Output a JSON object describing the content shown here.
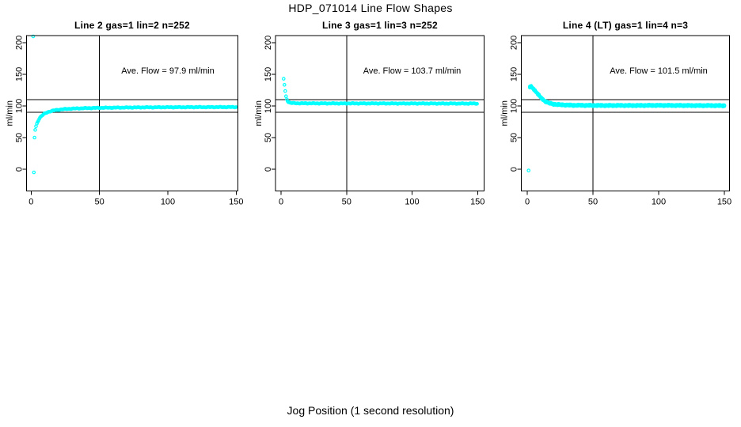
{
  "figure": {
    "title": "HDP_071014  Line Flow Shapes",
    "xlabel": "Jog Position (1 second resolution)"
  },
  "colors": {
    "points": "#00ffff",
    "axis": "#000000",
    "background": "#ffffff"
  },
  "chart_data": [
    {
      "type": "scatter",
      "title": "Line 2 gas=1 lin=2 n=252",
      "annotation": "Ave. Flow =  97.9  ml/min",
      "ave_flow_ml_min": 97.9,
      "n": 252,
      "ylabel": "ml/min",
      "xticks": [
        0,
        50,
        100,
        150
      ],
      "yticks": [
        0,
        50,
        100,
        150,
        200
      ],
      "xlim": [
        -3,
        153
      ],
      "ylim": [
        -34,
        212
      ],
      "ref_lines_horizontal": [
        90,
        110
      ],
      "ref_line_vertical": 50,
      "point_step": 0.6,
      "band_spread": 0,
      "outliers": [
        [
          1.5,
          210
        ],
        [
          2,
          -5
        ],
        [
          2.5,
          50
        ]
      ],
      "curve": [
        [
          3,
          62
        ],
        [
          3.4,
          66
        ],
        [
          3.8,
          69
        ],
        [
          4.2,
          72
        ],
        [
          4.6,
          74
        ],
        [
          5,
          76
        ],
        [
          5.5,
          78
        ],
        [
          6,
          80
        ],
        [
          6.5,
          81.5
        ],
        [
          7,
          83
        ],
        [
          8,
          85
        ],
        [
          9,
          86.5
        ],
        [
          10,
          88
        ],
        [
          11,
          89
        ],
        [
          12,
          90
        ],
        [
          13,
          90.8
        ],
        [
          14,
          91.5
        ],
        [
          15,
          92
        ],
        [
          16,
          92.5
        ],
        [
          17,
          93
        ],
        [
          18,
          93.4
        ],
        [
          19,
          93.7
        ],
        [
          20,
          94
        ],
        [
          22,
          94.5
        ],
        [
          24,
          94.9
        ],
        [
          26,
          95.2
        ],
        [
          28,
          95.5
        ],
        [
          30,
          95.7
        ],
        [
          33,
          96
        ],
        [
          36,
          96.2
        ],
        [
          40,
          96.5
        ],
        [
          44,
          96.7
        ],
        [
          48,
          96.9
        ],
        [
          52,
          97
        ],
        [
          56,
          97.2
        ],
        [
          60,
          97.3
        ],
        [
          65,
          97.4
        ],
        [
          70,
          97.5
        ],
        [
          75,
          97.6
        ],
        [
          80,
          97.7
        ],
        [
          85,
          97.8
        ],
        [
          90,
          97.8
        ],
        [
          95,
          97.9
        ],
        [
          100,
          98
        ],
        [
          110,
          98
        ],
        [
          120,
          98.1
        ],
        [
          130,
          98.1
        ],
        [
          140,
          98.2
        ],
        [
          150,
          98.2
        ]
      ]
    },
    {
      "type": "scatter",
      "title": "Line 3 gas=1 lin=3 n=252",
      "annotation": "Ave. Flow =  103.7  ml/min",
      "ave_flow_ml_min": 103.7,
      "n": 252,
      "ylabel": "ml/min",
      "xticks": [
        0,
        50,
        100,
        150
      ],
      "yticks": [
        0,
        50,
        100,
        150,
        200
      ],
      "xlim": [
        -3,
        153
      ],
      "ylim": [
        -34,
        212
      ],
      "ref_lines_horizontal": [
        90,
        110
      ],
      "ref_line_vertical": 50,
      "point_step": 0.6,
      "band_spread": 0,
      "outliers": [],
      "curve": [
        [
          2,
          143
        ],
        [
          2.5,
          135
        ],
        [
          3,
          127
        ],
        [
          3.5,
          118
        ],
        [
          4,
          113
        ],
        [
          4.5,
          110
        ],
        [
          5,
          108
        ],
        [
          5.5,
          106.5
        ],
        [
          6,
          105.8
        ],
        [
          6.5,
          105.4
        ],
        [
          7,
          105
        ],
        [
          8,
          104.7
        ],
        [
          9,
          104.5
        ],
        [
          10,
          104.4
        ],
        [
          12,
          104.3
        ],
        [
          15,
          104.2
        ],
        [
          20,
          104.2
        ],
        [
          25,
          104.1
        ],
        [
          30,
          104.1
        ],
        [
          40,
          104
        ],
        [
          50,
          104
        ],
        [
          60,
          104
        ],
        [
          70,
          104
        ],
        [
          80,
          104
        ],
        [
          90,
          103.9
        ],
        [
          100,
          103.9
        ],
        [
          110,
          103.9
        ],
        [
          120,
          103.8
        ],
        [
          130,
          103.8
        ],
        [
          140,
          103.8
        ],
        [
          150,
          103.8
        ]
      ]
    },
    {
      "type": "scatter",
      "title": "Line 4 (LT) gas=1 lin=4 n=3",
      "annotation": "Ave. Flow =  101.5  ml/min",
      "ave_flow_ml_min": 101.5,
      "n": 3,
      "ylabel": "ml/min",
      "xticks": [
        0,
        50,
        100,
        150
      ],
      "yticks": [
        0,
        50,
        100,
        150,
        200
      ],
      "xlim": [
        -3,
        153
      ],
      "ylim": [
        -34,
        212
      ],
      "ref_lines_horizontal": [
        90,
        110
      ],
      "ref_line_vertical": 50,
      "point_step": 1.0,
      "band_spread": 0.8,
      "outliers": [
        [
          1,
          -2
        ]
      ],
      "curve": [
        [
          2,
          130
        ],
        [
          2.5,
          131
        ],
        [
          3,
          130.5
        ],
        [
          3.5,
          129.5
        ],
        [
          4,
          128.5
        ],
        [
          5,
          126.5
        ],
        [
          6,
          124
        ],
        [
          7,
          121.5
        ],
        [
          8,
          119
        ],
        [
          9,
          116.5
        ],
        [
          10,
          114
        ],
        [
          11,
          112
        ],
        [
          12,
          110
        ],
        [
          13,
          108.5
        ],
        [
          14,
          107
        ],
        [
          15,
          106
        ],
        [
          16,
          105
        ],
        [
          17,
          104.3
        ],
        [
          18,
          103.8
        ],
        [
          19,
          103.3
        ],
        [
          20,
          103
        ],
        [
          22,
          102.4
        ],
        [
          24,
          102
        ],
        [
          26,
          101.8
        ],
        [
          28,
          101.6
        ],
        [
          30,
          101.4
        ],
        [
          35,
          101.1
        ],
        [
          40,
          101
        ],
        [
          45,
          100.9
        ],
        [
          50,
          100.8
        ],
        [
          60,
          100.7
        ],
        [
          70,
          100.8
        ],
        [
          80,
          100.7
        ],
        [
          90,
          100.8
        ],
        [
          100,
          100.9
        ],
        [
          110,
          100.8
        ],
        [
          120,
          100.7
        ],
        [
          130,
          100.6
        ],
        [
          140,
          100.6
        ],
        [
          150,
          100.5
        ]
      ]
    }
  ]
}
